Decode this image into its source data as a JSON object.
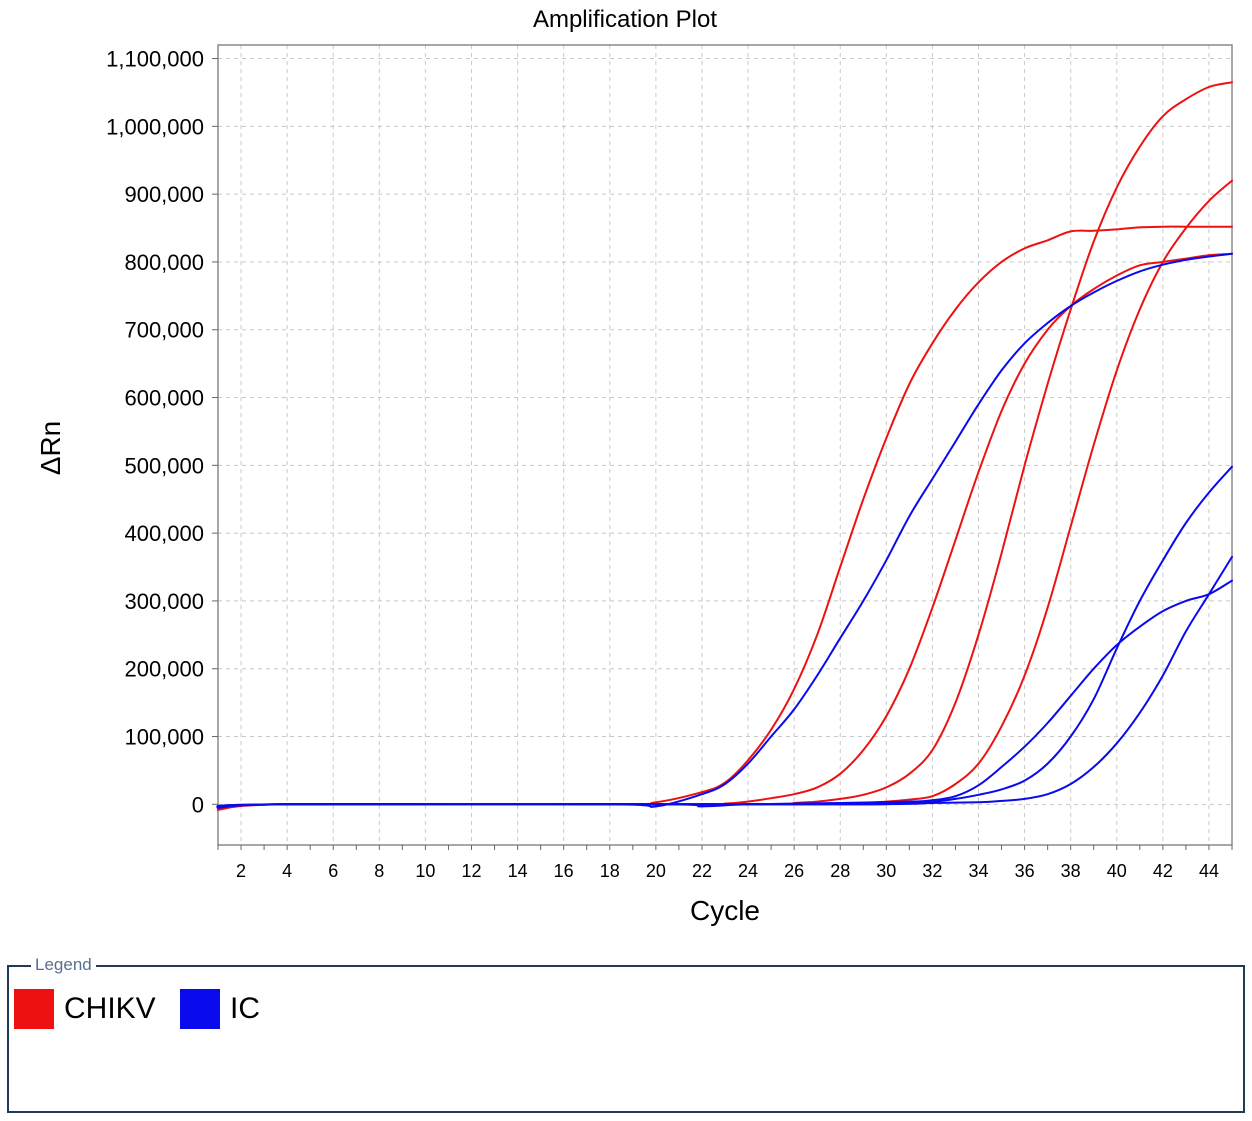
{
  "legend": {
    "title": "Legend",
    "items": [
      {
        "label": "CHIKV",
        "color": "#ee1111"
      },
      {
        "label": "IC",
        "color": "#0a0aee"
      }
    ]
  },
  "chart_data": {
    "type": "line",
    "title": "Amplification Plot",
    "xlabel": "Cycle",
    "ylabel": "ΔRn",
    "xlim": [
      1,
      45
    ],
    "ylim": [
      -60000,
      1120000
    ],
    "x_ticks": [
      2,
      4,
      6,
      8,
      10,
      12,
      14,
      16,
      18,
      20,
      22,
      24,
      26,
      28,
      30,
      32,
      34,
      36,
      38,
      40,
      42,
      44
    ],
    "y_ticks": [
      0,
      100000,
      200000,
      300000,
      400000,
      500000,
      600000,
      700000,
      800000,
      900000,
      1000000,
      1100000
    ],
    "y_tick_labels": [
      "0",
      "100,000",
      "200,000",
      "300,000",
      "400,000",
      "500,000",
      "600,000",
      "700,000",
      "800,000",
      "900,000",
      "1,000,000",
      "1,100,000"
    ],
    "grid": true,
    "series": [
      {
        "group": "CHIKV",
        "color": "#ee1111",
        "points": [
          [
            1,
            -8000
          ],
          [
            4,
            0
          ],
          [
            18,
            0
          ],
          [
            20,
            3000
          ],
          [
            22,
            18000
          ],
          [
            23,
            32000
          ],
          [
            24,
            65000
          ],
          [
            25,
            110000
          ],
          [
            26,
            170000
          ],
          [
            27,
            250000
          ],
          [
            28,
            350000
          ],
          [
            29,
            450000
          ],
          [
            30,
            540000
          ],
          [
            31,
            620000
          ],
          [
            32,
            680000
          ],
          [
            33,
            730000
          ],
          [
            34,
            770000
          ],
          [
            35,
            800000
          ],
          [
            36,
            820000
          ],
          [
            37,
            832000
          ],
          [
            38,
            845000
          ],
          [
            39,
            846000
          ],
          [
            40,
            848000
          ],
          [
            41,
            851000
          ],
          [
            42,
            852000
          ],
          [
            43,
            852000
          ],
          [
            44,
            852000
          ],
          [
            45,
            852000
          ]
        ]
      },
      {
        "group": "CHIKV",
        "color": "#ee1111",
        "points": [
          [
            1,
            -8000
          ],
          [
            4,
            0
          ],
          [
            22,
            0
          ],
          [
            23,
            1000
          ],
          [
            24,
            4000
          ],
          [
            25,
            9000
          ],
          [
            26,
            15000
          ],
          [
            27,
            25000
          ],
          [
            28,
            45000
          ],
          [
            29,
            80000
          ],
          [
            30,
            130000
          ],
          [
            31,
            200000
          ],
          [
            32,
            290000
          ],
          [
            33,
            390000
          ],
          [
            34,
            490000
          ],
          [
            35,
            580000
          ],
          [
            36,
            650000
          ],
          [
            37,
            700000
          ],
          [
            38,
            735000
          ],
          [
            39,
            760000
          ],
          [
            40,
            780000
          ],
          [
            41,
            795000
          ],
          [
            42,
            800000
          ],
          [
            43,
            805000
          ],
          [
            44,
            810000
          ],
          [
            45,
            812000
          ]
        ]
      },
      {
        "group": "CHIKV",
        "color": "#ee1111",
        "points": [
          [
            1,
            -8000
          ],
          [
            4,
            0
          ],
          [
            25,
            0
          ],
          [
            26,
            2000
          ],
          [
            27,
            4000
          ],
          [
            28,
            8000
          ],
          [
            29,
            14000
          ],
          [
            30,
            25000
          ],
          [
            31,
            45000
          ],
          [
            32,
            80000
          ],
          [
            33,
            150000
          ],
          [
            34,
            250000
          ],
          [
            35,
            370000
          ],
          [
            36,
            500000
          ],
          [
            37,
            620000
          ],
          [
            38,
            730000
          ],
          [
            39,
            830000
          ],
          [
            40,
            910000
          ],
          [
            41,
            970000
          ],
          [
            42,
            1015000
          ],
          [
            43,
            1040000
          ],
          [
            44,
            1058000
          ],
          [
            45,
            1065000
          ]
        ]
      },
      {
        "group": "CHIKV",
        "color": "#ee1111",
        "points": [
          [
            1,
            -8000
          ],
          [
            4,
            0
          ],
          [
            28,
            0
          ],
          [
            29,
            2000
          ],
          [
            30,
            4000
          ],
          [
            31,
            7000
          ],
          [
            32,
            12000
          ],
          [
            33,
            30000
          ],
          [
            34,
            60000
          ],
          [
            35,
            115000
          ],
          [
            36,
            190000
          ],
          [
            37,
            290000
          ],
          [
            38,
            410000
          ],
          [
            39,
            530000
          ],
          [
            40,
            640000
          ],
          [
            41,
            730000
          ],
          [
            42,
            800000
          ],
          [
            43,
            850000
          ],
          [
            44,
            890000
          ],
          [
            45,
            920000
          ]
        ]
      },
      {
        "group": "IC",
        "color": "#0a0aee",
        "points": [
          [
            1,
            -5000
          ],
          [
            4,
            0
          ],
          [
            18,
            0
          ],
          [
            20,
            -3000
          ],
          [
            22,
            15000
          ],
          [
            23,
            30000
          ],
          [
            24,
            60000
          ],
          [
            25,
            100000
          ],
          [
            26,
            140000
          ],
          [
            27,
            190000
          ],
          [
            28,
            245000
          ],
          [
            29,
            300000
          ],
          [
            30,
            360000
          ],
          [
            31,
            425000
          ],
          [
            32,
            480000
          ],
          [
            33,
            535000
          ],
          [
            34,
            590000
          ],
          [
            35,
            640000
          ],
          [
            36,
            680000
          ],
          [
            37,
            710000
          ],
          [
            38,
            735000
          ],
          [
            39,
            755000
          ],
          [
            40,
            772000
          ],
          [
            41,
            786000
          ],
          [
            42,
            796000
          ],
          [
            43,
            803000
          ],
          [
            44,
            808000
          ],
          [
            45,
            812000
          ]
        ]
      },
      {
        "group": "IC",
        "color": "#0a0aee",
        "points": [
          [
            1,
            -5000
          ],
          [
            4,
            0
          ],
          [
            20,
            0
          ],
          [
            22,
            -3000
          ],
          [
            24,
            0
          ],
          [
            28,
            2000
          ],
          [
            31,
            4000
          ],
          [
            32,
            6000
          ],
          [
            33,
            12000
          ],
          [
            34,
            28000
          ],
          [
            35,
            55000
          ],
          [
            36,
            85000
          ],
          [
            37,
            120000
          ],
          [
            38,
            160000
          ],
          [
            39,
            200000
          ],
          [
            40,
            235000
          ],
          [
            41,
            262000
          ],
          [
            42,
            285000
          ],
          [
            43,
            300000
          ],
          [
            44,
            310000
          ],
          [
            45,
            330000
          ]
        ]
      },
      {
        "group": "IC",
        "color": "#0a0aee",
        "points": [
          [
            1,
            -5000
          ],
          [
            4,
            0
          ],
          [
            28,
            0
          ],
          [
            30,
            2000
          ],
          [
            32,
            4000
          ],
          [
            33,
            8000
          ],
          [
            34,
            14000
          ],
          [
            35,
            22000
          ],
          [
            36,
            35000
          ],
          [
            37,
            60000
          ],
          [
            38,
            100000
          ],
          [
            39,
            155000
          ],
          [
            40,
            230000
          ],
          [
            41,
            300000
          ],
          [
            42,
            360000
          ],
          [
            43,
            415000
          ],
          [
            44,
            460000
          ],
          [
            45,
            498000
          ]
        ]
      },
      {
        "group": "IC",
        "color": "#0a0aee",
        "points": [
          [
            1,
            -5000
          ],
          [
            4,
            0
          ],
          [
            28,
            0
          ],
          [
            32,
            2000
          ],
          [
            34,
            3000
          ],
          [
            35,
            5000
          ],
          [
            36,
            8000
          ],
          [
            37,
            15000
          ],
          [
            38,
            30000
          ],
          [
            39,
            55000
          ],
          [
            40,
            90000
          ],
          [
            41,
            135000
          ],
          [
            42,
            190000
          ],
          [
            43,
            255000
          ],
          [
            44,
            310000
          ],
          [
            45,
            365000
          ]
        ]
      }
    ]
  }
}
